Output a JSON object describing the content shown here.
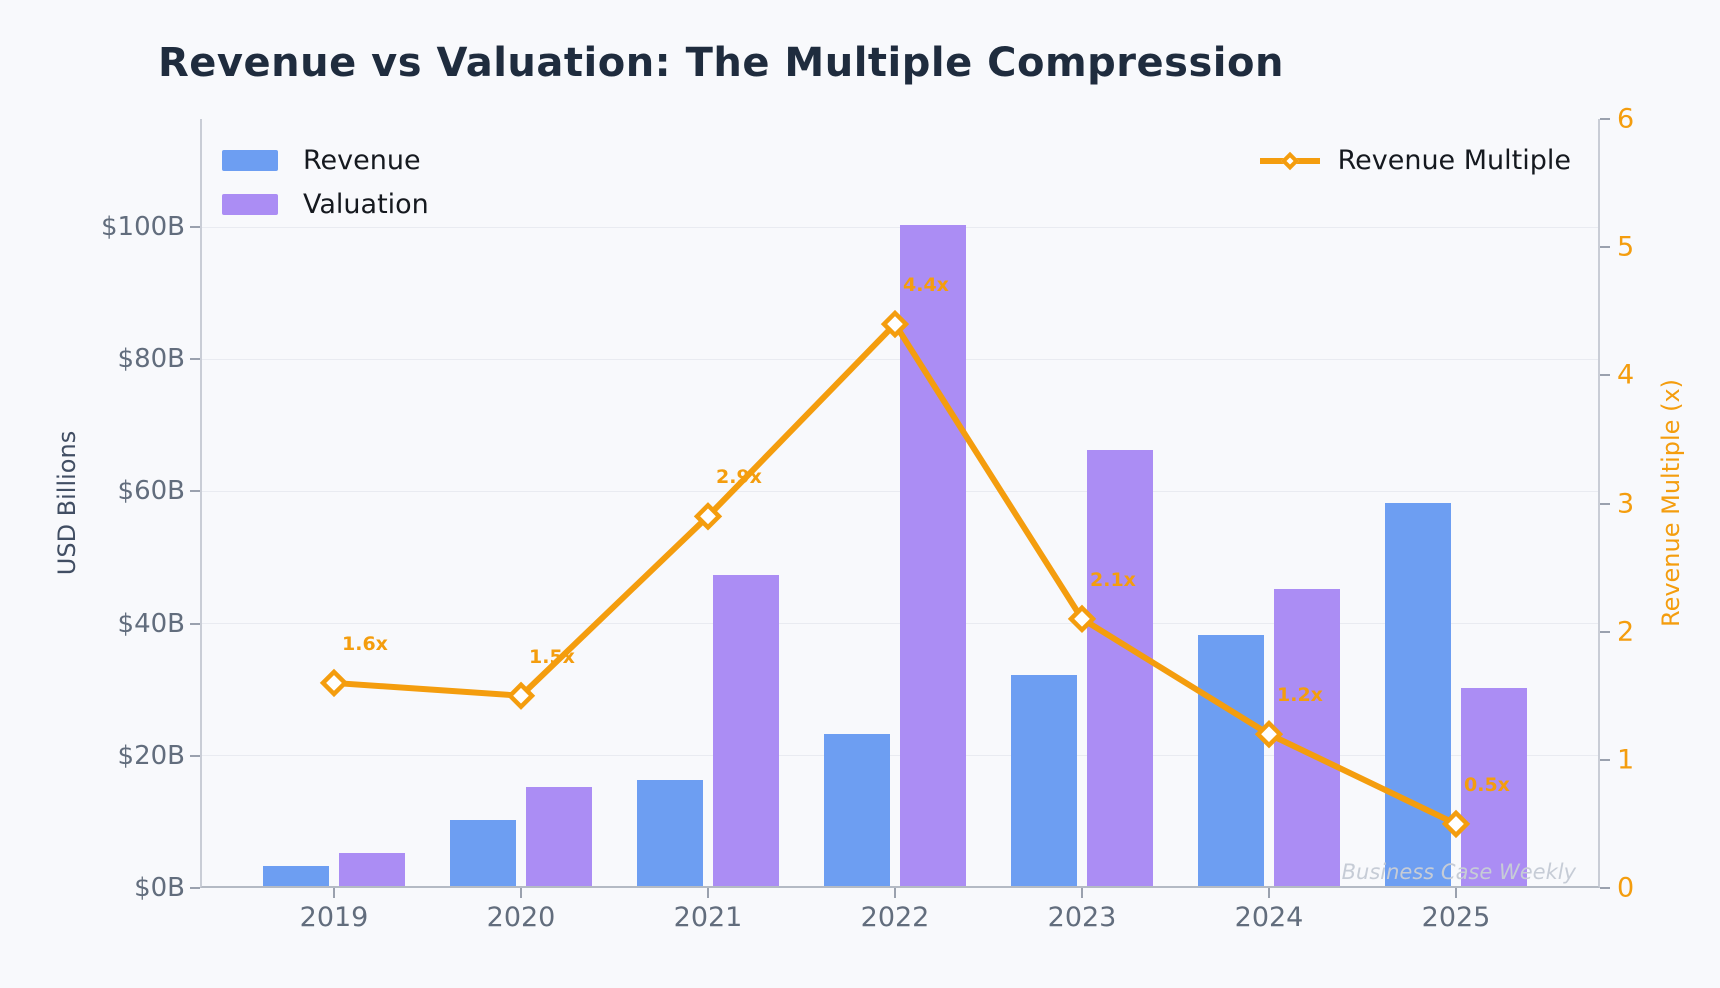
{
  "title": "Revenue vs Valuation: The Multiple Compression",
  "watermark": "Business Case Weekly",
  "colors": {
    "background": "#f8f9fc",
    "revenue_bar": "#6d9ef2",
    "valuation_bar": "#ab8df4",
    "multiple_line": "#f49d0e",
    "title_text": "#1f2c3e",
    "tick_text": "#626d7d",
    "grid_line": "#e9ebf1",
    "watermark_text": "#c6ccd6"
  },
  "chart_data": {
    "type": "bar",
    "subtype": "grouped-bars-with-line-overlay",
    "categories": [
      "2019",
      "2020",
      "2021",
      "2022",
      "2023",
      "2024",
      "2025"
    ],
    "series": [
      {
        "name": "Revenue",
        "type": "bar",
        "axis": "left",
        "color": "#6d9ef2",
        "values": [
          3,
          10,
          16,
          23,
          32,
          38,
          58
        ]
      },
      {
        "name": "Valuation",
        "type": "bar",
        "axis": "left",
        "color": "#ab8df4",
        "values": [
          5,
          15,
          47,
          100,
          66,
          45,
          30
        ]
      },
      {
        "name": "Revenue Multiple",
        "type": "line",
        "axis": "right",
        "color": "#f49d0e",
        "marker": "diamond",
        "values": [
          1.6,
          1.5,
          2.9,
          4.4,
          2.1,
          1.2,
          0.5
        ],
        "point_labels": [
          "1.6x",
          "1.5x",
          "2.9x",
          "4.4x",
          "2.1x",
          "1.2x",
          "0.5x"
        ]
      }
    ],
    "left_axis": {
      "label": "USD Billions",
      "tick_labels": [
        "$0B",
        "$20B",
        "$40B",
        "$60B",
        "$80B",
        "$100B"
      ],
      "tick_values": [
        0,
        20,
        40,
        60,
        80,
        100
      ],
      "range": [
        0,
        116.35
      ]
    },
    "right_axis": {
      "label": "Revenue Multiple (x)",
      "tick_labels": [
        "0",
        "1",
        "2",
        "3",
        "4",
        "5",
        "6"
      ],
      "tick_values": [
        0,
        1,
        2,
        3,
        4,
        5,
        6
      ],
      "range": [
        0,
        6
      ]
    },
    "grid": "horizontal",
    "legend_left_items": [
      "Revenue",
      "Valuation"
    ],
    "legend_right_item": "Revenue Multiple"
  }
}
